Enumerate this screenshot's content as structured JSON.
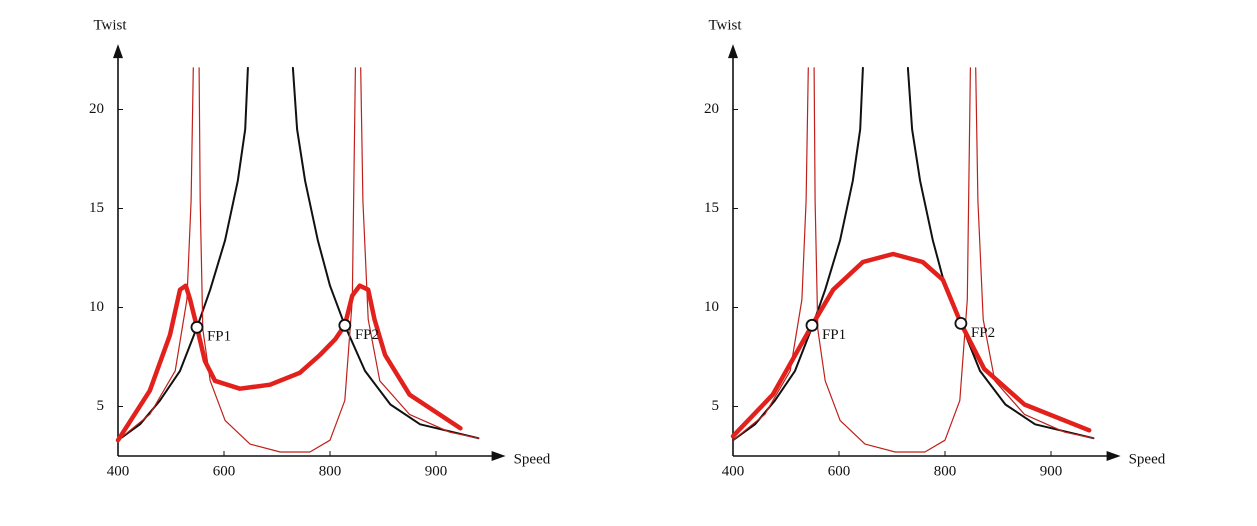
{
  "chart_data": [
    {
      "type": "line",
      "xlabel": "Speed",
      "ylabel": "Twist",
      "xlim": [
        400,
        960
      ],
      "ylim": [
        2.5,
        23
      ],
      "xticks": [
        400,
        600,
        800,
        900
      ],
      "yticks": [
        5,
        10,
        15,
        20
      ],
      "series": [
        {
          "color": "#111111",
          "style": "medium",
          "x": [
            400,
            441.5,
            479,
            517,
            549,
            574,
            602,
            626,
            640,
            645
          ],
          "values": [
            3.3,
            4.1,
            5.3,
            6.8,
            9.0,
            10.9,
            13.4,
            16.4,
            19.0,
            22.1
          ]
        },
        {
          "color": "#111111",
          "style": "medium",
          "x": [
            730,
            738,
            753,
            777,
            800,
            814,
            833,
            857,
            885,
            940
          ],
          "values": [
            22.1,
            19.0,
            16.4,
            13.4,
            11.1,
            9.1,
            6.8,
            5.1,
            4.1,
            3.4
          ]
        },
        {
          "color": "#c0201a",
          "style": "thin",
          "x": [
            400,
            460,
            508,
            530,
            538,
            542
          ],
          "values": [
            3.3,
            4.6,
            6.8,
            10.4,
            15.4,
            22.1
          ]
        },
        {
          "color": "#c0201a",
          "style": "thin",
          "x": [
            553,
            555,
            560,
            574,
            602,
            649,
            706,
            762,
            800,
            814,
            821,
            824
          ],
          "values": [
            22.1,
            15.4,
            8.9,
            6.3,
            4.3,
            3.1,
            2.7,
            2.7,
            3.3,
            5.3,
            10.4,
            22.1
          ]
        },
        {
          "color": "#c0201a",
          "style": "thin",
          "x": [
            829,
            831,
            836,
            847,
            875,
            913,
            940
          ],
          "values": [
            22.1,
            15.4,
            9.4,
            6.3,
            4.6,
            3.7,
            3.4
          ]
        },
        {
          "color": "#e3211c",
          "style": "thick",
          "x": [
            400,
            460,
            498,
            517,
            528,
            536,
            549,
            564,
            583,
            630,
            687,
            743,
            781,
            805,
            814,
            821,
            828,
            836,
            842,
            852,
            875,
            923
          ],
          "values": [
            3.3,
            5.8,
            8.6,
            10.9,
            11.1,
            10.4,
            9.0,
            7.3,
            6.3,
            5.9,
            6.1,
            6.7,
            7.6,
            8.4,
            9.1,
            10.6,
            11.1,
            10.9,
            9.4,
            7.6,
            5.6,
            3.9
          ]
        }
      ],
      "annotations": [
        {
          "text": "FP1",
          "x": 549,
          "y": 9.0
        },
        {
          "text": "FP2",
          "x": 814,
          "y": 9.1
        }
      ]
    },
    {
      "type": "line",
      "xlabel": "Speed",
      "ylabel": "Twist",
      "xlim": [
        400,
        960
      ],
      "ylim": [
        2.5,
        23
      ],
      "xticks": [
        400,
        600,
        800,
        900
      ],
      "yticks": [
        5,
        10,
        15,
        20
      ],
      "series": [
        {
          "color": "#111111",
          "style": "medium",
          "x": [
            400,
            441.5,
            479,
            517,
            549,
            574,
            602,
            626,
            640,
            645
          ],
          "values": [
            3.3,
            4.1,
            5.3,
            6.8,
            9.0,
            10.9,
            13.4,
            16.4,
            19.0,
            22.1
          ]
        },
        {
          "color": "#111111",
          "style": "medium",
          "x": [
            730,
            738,
            753,
            777,
            800,
            815,
            833,
            857,
            885,
            940
          ],
          "values": [
            22.1,
            19.0,
            16.4,
            13.4,
            11.1,
            9.2,
            6.8,
            5.1,
            4.1,
            3.4
          ]
        },
        {
          "color": "#c0201a",
          "style": "thin",
          "x": [
            400,
            460,
            508,
            530,
            538,
            542
          ],
          "values": [
            3.3,
            4.6,
            6.8,
            10.4,
            15.4,
            22.1
          ]
        },
        {
          "color": "#c0201a",
          "style": "thin",
          "x": [
            553,
            555,
            560,
            574,
            602,
            649,
            706,
            762,
            800,
            814,
            821,
            824
          ],
          "values": [
            22.1,
            15.4,
            8.9,
            6.3,
            4.3,
            3.1,
            2.7,
            2.7,
            3.3,
            5.3,
            10.4,
            22.1
          ]
        },
        {
          "color": "#c0201a",
          "style": "thin",
          "x": [
            829,
            831,
            836,
            847,
            875,
            913,
            940
          ],
          "values": [
            22.1,
            15.4,
            9.4,
            6.3,
            4.6,
            3.7,
            3.4
          ]
        },
        {
          "color": "#e3211c",
          "style": "thick",
          "x": [
            400,
            475,
            549,
            589,
            645,
            702,
            758,
            796,
            815,
            837,
            875,
            936
          ],
          "values": [
            3.5,
            5.6,
            9.1,
            10.9,
            12.3,
            12.7,
            12.3,
            11.4,
            9.2,
            6.9,
            5.1,
            3.8
          ]
        }
      ],
      "annotations": [
        {
          "text": "FP1",
          "x": 549,
          "y": 9.1
        },
        {
          "text": "FP2",
          "x": 815,
          "y": 9.2
        }
      ]
    }
  ]
}
